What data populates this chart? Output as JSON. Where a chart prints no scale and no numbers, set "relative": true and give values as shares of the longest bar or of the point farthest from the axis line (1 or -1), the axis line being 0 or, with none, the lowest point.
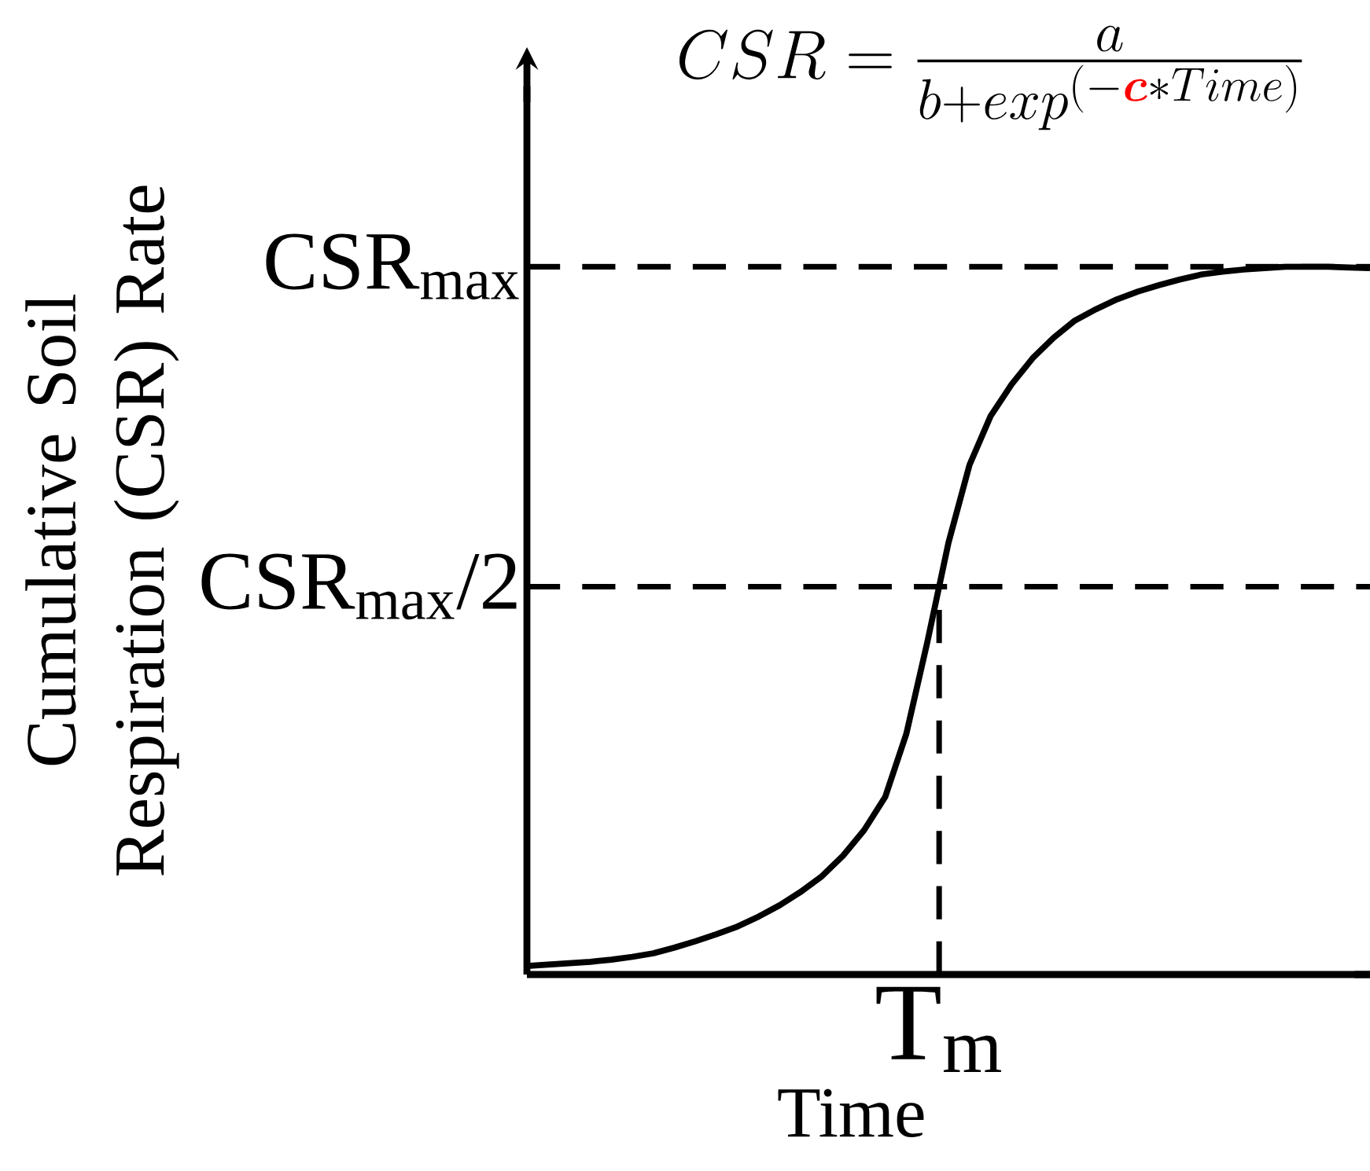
{
  "chart_data": {
    "type": "line",
    "relative": true,
    "title": "CSR=\\frac{a}{b+exp^{(-{\\color[HTML]{FF0000}\\boldsymbol{c}}*Time)}}",
    "xlabel": "Time",
    "ylabel": "Cumulative Soil Respiration (CSR) Rate",
    "categories": [
      null,
      null,
      null,
      null,
      null,
      null,
      null,
      null,
      null,
      null,
      null,
      null,
      null,
      null,
      null,
      null,
      null,
      null,
      null,
      null,
      null,
      null,
      null,
      null,
      null,
      null,
      null,
      null,
      null,
      null,
      null,
      null,
      null,
      null,
      null,
      null,
      null,
      null,
      null,
      null,
      null
    ],
    "values": [
      0.012,
      0.014,
      0.016,
      0.018,
      0.021,
      0.025,
      0.03,
      0.038,
      0.047,
      0.057,
      0.068,
      0.082,
      0.098,
      0.117,
      0.139,
      0.168,
      0.204,
      0.251,
      0.34,
      0.47,
      0.61,
      0.72,
      0.789,
      0.834,
      0.871,
      0.9,
      0.924,
      0.94,
      0.954,
      0.965,
      0.974,
      0.982,
      0.989,
      0.993,
      0.996,
      0.998,
      1.0,
      1.0,
      1.0,
      0.999,
      0.998
    ],
    "color": "#000000",
    "line_style": "solid",
    "ref_lines": [
      {
        "axis": "y",
        "value": 1.0,
        "label": "CSR$_{max}$",
        "line_style": "dashed"
      },
      {
        "axis": "y",
        "value": 0.548,
        "label": "CSR$_{max}$/2",
        "line_style": "dashed"
      }
    ],
    "annotations": [
      "T$_{m}$"
    ]
  }
}
